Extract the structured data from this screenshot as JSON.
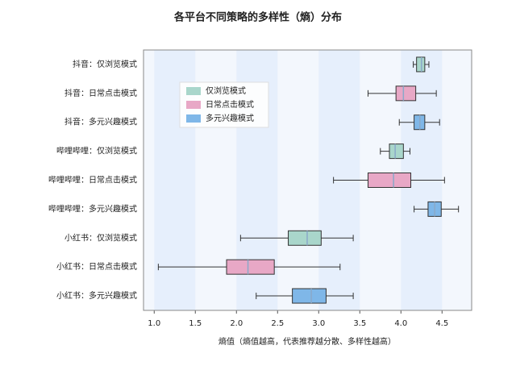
{
  "chart_data": {
    "type": "boxplot",
    "title": "各平台不同策略的多样性（熵）分布",
    "x_label": "熵值（熵值越高，代表推荐越分散、多样性越高）",
    "categories": [
      "抖音：仅浏览模式",
      "抖音：日常点击模式",
      "抖音：多元兴趣模式",
      "哔哩哔哩：仅浏览模式",
      "哔哩哔哩：日常点击模式",
      "哔哩哔哩：多元兴趣模式",
      "小红书：仅浏览模式",
      "小红书：日常点击模式",
      "小红书：多元兴趣模式"
    ],
    "series": [
      {
        "name": "仅浏览模式",
        "color": "#a9d6cb",
        "values": [
          {
            "min": 4.15,
            "q1": 4.19,
            "median": 4.25,
            "q3": 4.29,
            "max": 4.34
          },
          {
            "min": 3.75,
            "q1": 3.86,
            "median": 3.93,
            "q3": 4.03,
            "max": 4.11
          },
          {
            "min": 2.05,
            "q1": 2.63,
            "median": 2.86,
            "q3": 3.03,
            "max": 3.42
          }
        ]
      },
      {
        "name": "日常点击模式",
        "color": "#e8a8c6",
        "values": [
          {
            "min": 3.6,
            "q1": 3.94,
            "median": 4.03,
            "q3": 4.18,
            "max": 4.43
          },
          {
            "min": 3.18,
            "q1": 3.6,
            "median": 3.91,
            "q3": 4.12,
            "max": 4.53
          },
          {
            "min": 1.05,
            "q1": 1.88,
            "median": 2.14,
            "q3": 2.46,
            "max": 3.26
          }
        ]
      },
      {
        "name": "多元兴趣模式",
        "color": "#7fb7e8",
        "values": [
          {
            "min": 3.98,
            "q1": 4.16,
            "median": 4.23,
            "q3": 4.29,
            "max": 4.47
          },
          {
            "min": 4.16,
            "q1": 4.33,
            "median": 4.41,
            "q3": 4.49,
            "max": 4.7
          },
          {
            "min": 2.24,
            "q1": 2.68,
            "median": 2.91,
            "q3": 3.09,
            "max": 3.42
          }
        ]
      }
    ],
    "xlim": [
      0.87,
      4.86
    ],
    "xticks": [
      {
        "value": 1.0,
        "label": "1.0"
      },
      1.5,
      {
        "value": 2.0,
        "label": "2.0"
      },
      2.5,
      {
        "value": 3.0,
        "label": "3.0"
      },
      3.5,
      {
        "value": 4.0,
        "label": "4.0"
      },
      4.5
    ],
    "legend": "upper left"
  }
}
